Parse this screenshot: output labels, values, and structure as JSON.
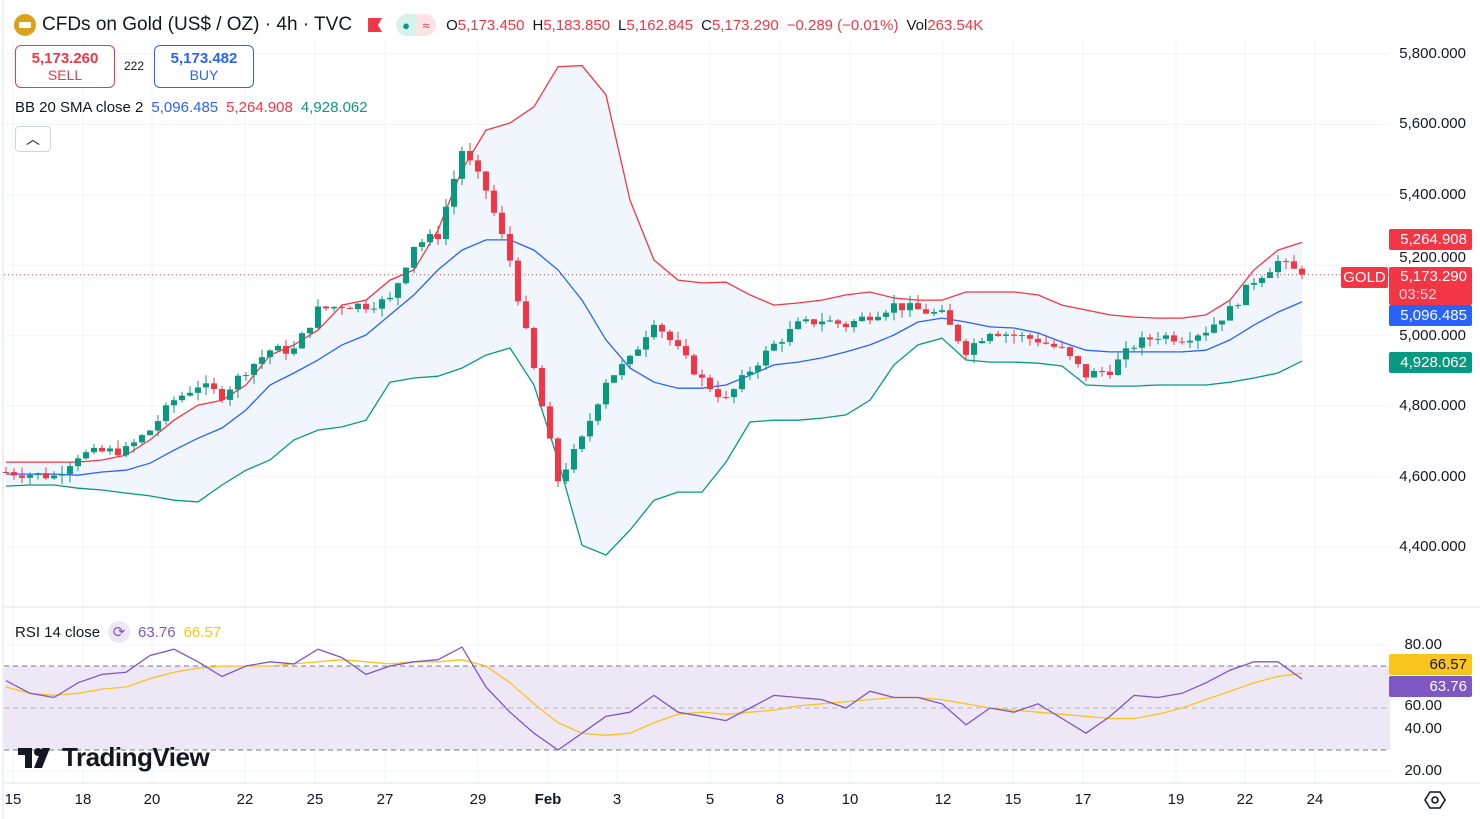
{
  "header": {
    "symbol_title": "CFDs on Gold (US$ / OZ) · 4h · TVC",
    "open_label": "O",
    "open": "5,173.450",
    "high_label": "H",
    "high": "5,183.850",
    "low_label": "L",
    "low": "5,162.845",
    "close_label": "C",
    "close": "5,173.290",
    "change": "−0.289 (−0.01%)",
    "vol_label": "Vol",
    "volume": "263.54K"
  },
  "trade": {
    "sell_price": "5,173.260",
    "sell_label": "SELL",
    "spread": "222",
    "buy_price": "5,173.482",
    "buy_label": "BUY"
  },
  "bb": {
    "label": "BB 20 SMA close 2",
    "basis": "5,096.485",
    "upper": "5,264.908",
    "lower": "4,928.062"
  },
  "rsi": {
    "label": "RSI 14 close",
    "value": "63.76",
    "ma": "66.57"
  },
  "price_axis": [
    "5,800.000",
    "5,600.000",
    "5,400.000",
    "5,200.000",
    "5,000.000",
    "4,800.000",
    "4,600.000",
    "4,400.000"
  ],
  "rsi_axis": [
    "80.00",
    "60.00",
    "40.00",
    "20.00"
  ],
  "time_axis": [
    "15",
    "18",
    "20",
    "22",
    "25",
    "27",
    "29",
    "Feb",
    "3",
    "5",
    "8",
    "10",
    "12",
    "15",
    "17",
    "19",
    "22",
    "24"
  ],
  "labels": {
    "upper": "5,264.908",
    "symbol": "GOLD",
    "last": "5,173.290",
    "countdown": "03:52",
    "basis": "5,096.485",
    "lower": "4,928.062",
    "rsi_ma": "66.57",
    "rsi": "63.76"
  },
  "branding": "TradingView",
  "colors": {
    "up": "#089981",
    "down": "#f23645",
    "basis": "#2962ff",
    "upper": "#f23645",
    "lower": "#089981",
    "band_fill": "#f0f6fc",
    "rsi": "#7e57c2",
    "rsi_ma": "#f7c51e",
    "rsi_band": "#ede7f6"
  },
  "chart_data": {
    "type": "candlestick",
    "ylim": [
      4400,
      5800
    ],
    "rsi_ylim": [
      20,
      80
    ],
    "rsi_levels": [
      70,
      50,
      30
    ],
    "close": [
      4613,
      4607,
      4601,
      4661,
      4670,
      4675,
      4732,
      4817,
      4860,
      4832,
      4903,
      4959,
      4959,
      5073,
      5087,
      5087,
      5101,
      5258,
      5286,
      5527,
      5414,
      5215,
      4903,
      4590,
      4704,
      4874,
      4931,
      5045,
      4959,
      4874,
      4817,
      4903,
      4974,
      5030,
      5045,
      5030,
      5059,
      5087,
      5073,
      5059,
      4959,
      5016,
      5001,
      4988,
      4959,
      4888,
      4903,
      4974,
      5001,
      4993,
      5016,
      5073,
      5158,
      5210,
      5173
    ],
    "bb_upper": [
      4641,
      4641,
      4641,
      4641,
      4647,
      4661,
      4704,
      4760,
      4803,
      4817,
      4860,
      4945,
      4974,
      5016,
      5087,
      5101,
      5158,
      5187,
      5300,
      5471,
      5584,
      5604,
      5650,
      5764,
      5767,
      5684,
      5385,
      5215,
      5158,
      5150,
      5152,
      5116,
      5087,
      5093,
      5101,
      5116,
      5124,
      5107,
      5101,
      5101,
      5124,
      5124,
      5124,
      5116,
      5087,
      5073,
      5059,
      5053,
      5050,
      5050,
      5059,
      5101,
      5187,
      5243,
      5265
    ],
    "bb_basis": [
      4607,
      4607,
      4607,
      4604,
      4613,
      4618,
      4638,
      4675,
      4709,
      4738,
      4789,
      4860,
      4894,
      4931,
      4974,
      5002,
      5059,
      5116,
      5187,
      5243,
      5272,
      5272,
      5243,
      5187,
      5101,
      4988,
      4908,
      4868,
      4851,
      4851,
      4860,
      4888,
      4917,
      4925,
      4937,
      4954,
      4974,
      5002,
      5039,
      5050,
      5039,
      5025,
      5022,
      5008,
      4982,
      4959,
      4954,
      4954,
      4954,
      4954,
      4959,
      4988,
      5030,
      5067,
      5096
    ],
    "bb_lower": [
      4573,
      4576,
      4576,
      4567,
      4562,
      4553,
      4545,
      4533,
      4528,
      4576,
      4618,
      4647,
      4704,
      4732,
      4741,
      4760,
      4868,
      4880,
      4885,
      4908,
      4945,
      4965,
      4860,
      4647,
      4405,
      4377,
      4448,
      4533,
      4556,
      4556,
      4641,
      4755,
      4760,
      4760,
      4766,
      4775,
      4817,
      4917,
      4974,
      4993,
      4931,
      4925,
      4925,
      4922,
      4914,
      4860,
      4857,
      4857,
      4860,
      4860,
      4860,
      4868,
      4880,
      4894,
      4928
    ],
    "rsi": [
      63,
      57,
      55,
      62,
      66,
      67,
      75,
      78,
      72,
      65,
      70,
      72,
      71,
      78,
      74,
      66,
      70,
      72,
      73,
      79,
      60,
      48,
      38,
      30,
      38,
      46,
      48,
      56,
      48,
      46,
      44,
      50,
      56,
      55,
      54,
      50,
      58,
      55,
      55,
      52,
      42,
      50,
      48,
      52,
      45,
      38,
      46,
      56,
      55,
      57,
      62,
      68,
      72,
      72,
      63.76
    ],
    "rsi_ma": [
      60,
      57,
      56,
      57,
      59,
      60,
      64,
      67,
      69,
      70,
      70,
      70,
      71,
      72,
      73,
      72,
      71,
      72,
      72,
      73,
      70,
      62,
      52,
      43,
      38,
      37,
      38,
      43,
      47,
      48,
      47,
      48,
      49,
      51,
      52,
      53,
      54,
      55,
      55,
      54,
      52,
      50,
      49,
      48,
      47,
      46,
      45,
      45,
      47,
      50,
      54,
      58,
      62,
      65,
      66.57
    ]
  }
}
